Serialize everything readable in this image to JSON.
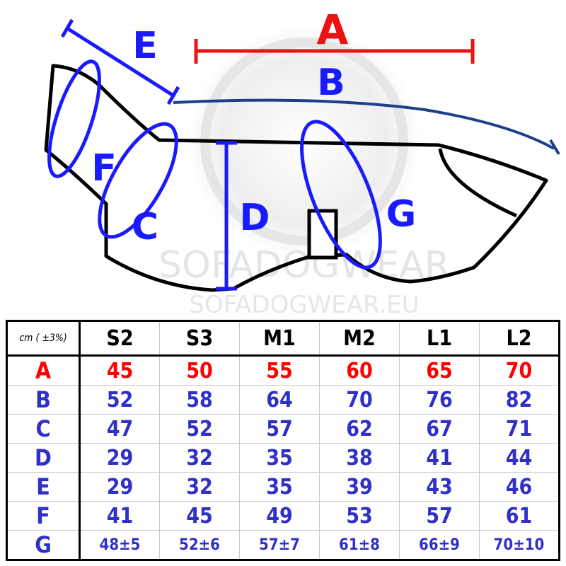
{
  "diagram": {
    "labels": {
      "A": "A",
      "B": "B",
      "C": "C",
      "D": "D",
      "E": "E",
      "F": "F",
      "G": "G"
    },
    "watermark": "SOFADOGWEAR",
    "watermark_url": "SOFADOGWEAR.EU",
    "colors": {
      "A": "#ff0000",
      "B": "#1c3f8c",
      "other": "#1a1aff",
      "outline": "#000000"
    }
  },
  "table": {
    "unit": "cm ( ±3%)",
    "sizes": [
      "S2",
      "S3",
      "M1",
      "M2",
      "L1",
      "L2"
    ],
    "rows": [
      {
        "label": "A",
        "color": "#ff0000",
        "values": [
          "45",
          "50",
          "55",
          "60",
          "65",
          "70"
        ]
      },
      {
        "label": "B",
        "color": "#3030c8",
        "values": [
          "52",
          "58",
          "64",
          "70",
          "76",
          "82"
        ]
      },
      {
        "label": "C",
        "color": "#3030c8",
        "values": [
          "47",
          "52",
          "57",
          "62",
          "67",
          "71"
        ]
      },
      {
        "label": "D",
        "color": "#3030c8",
        "values": [
          "29",
          "32",
          "35",
          "38",
          "41",
          "44"
        ]
      },
      {
        "label": "E",
        "color": "#3030c8",
        "values": [
          "29",
          "32",
          "35",
          "39",
          "43",
          "46"
        ]
      },
      {
        "label": "F",
        "color": "#3030c8",
        "values": [
          "41",
          "45",
          "49",
          "53",
          "57",
          "61"
        ]
      },
      {
        "label": "G",
        "color": "#3030c8",
        "values": [
          "48±5",
          "52±6",
          "57±7",
          "61±8",
          "66±9",
          "70±10"
        ]
      }
    ]
  }
}
